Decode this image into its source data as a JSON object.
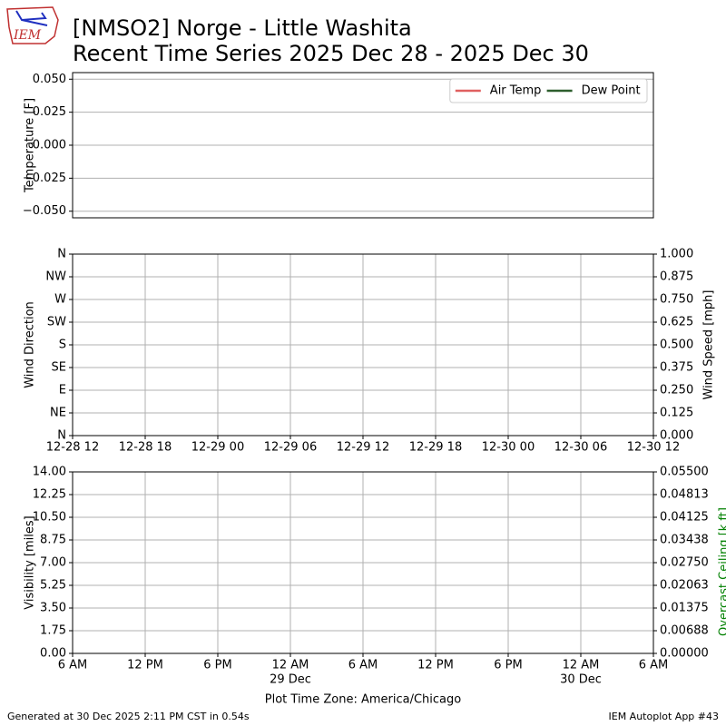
{
  "logo_text": "IEM",
  "title_lines": [
    "[NMSO2] Norge - Little Washita",
    "Recent Time Series 2025 Dec 28 - 2025 Dec 30"
  ],
  "footer_left": "Generated at 30 Dec 2025 2:11 PM CST in 0.54s",
  "footer_right": "IEM Autoplot App #43",
  "chart_data": [
    {
      "type": "line",
      "ylabel": "Temperature [F]",
      "ylim": [
        -0.055,
        0.055
      ],
      "yticks": [
        {
          "value": 0.05,
          "label": "0.050"
        },
        {
          "value": 0.025,
          "label": "0.025"
        },
        {
          "value": 0,
          "label": "0.000"
        },
        {
          "value": -0.025,
          "label": "−0.025"
        },
        {
          "value": -0.05,
          "label": "−0.050"
        }
      ],
      "grid": "y",
      "legend": "upper right",
      "series": [
        {
          "name": "Air Temp",
          "color": "#e06060",
          "values": []
        },
        {
          "name": "Dew Point",
          "color": "#2e5e2e",
          "values": []
        }
      ]
    },
    {
      "type": "line",
      "ylabel": "Wind Direction",
      "ylim": [
        0,
        360
      ],
      "yticks": [
        {
          "value": 0,
          "label": "N"
        },
        {
          "value": 45,
          "label": "NE"
        },
        {
          "value": 90,
          "label": "E"
        },
        {
          "value": 135,
          "label": "SE"
        },
        {
          "value": 180,
          "label": "S"
        },
        {
          "value": 225,
          "label": "SW"
        },
        {
          "value": 270,
          "label": "W"
        },
        {
          "value": 315,
          "label": "NW"
        },
        {
          "value": 360,
          "label": "N"
        }
      ],
      "y2label": "Wind Speed [mph]",
      "y2lim": [
        0,
        1
      ],
      "y2ticks": [
        {
          "value": 0,
          "label": "0.000"
        },
        {
          "value": 0.125,
          "label": "0.125"
        },
        {
          "value": 0.25,
          "label": "0.250"
        },
        {
          "value": 0.375,
          "label": "0.375"
        },
        {
          "value": 0.5,
          "label": "0.500"
        },
        {
          "value": 0.625,
          "label": "0.625"
        },
        {
          "value": 0.75,
          "label": "0.750"
        },
        {
          "value": 0.875,
          "label": "0.875"
        },
        {
          "value": 1,
          "label": "1.000"
        }
      ],
      "xticks": [
        [
          "12-28 12"
        ],
        [
          "12-28 18"
        ],
        [
          "12-29 00"
        ],
        [
          "12-29 06"
        ],
        [
          "12-29 12"
        ],
        [
          "12-29 18"
        ],
        [
          "12-30 00"
        ],
        [
          "12-30 06"
        ],
        [
          "12-30 12"
        ]
      ],
      "grid": "both"
    },
    {
      "type": "line",
      "ylabel": "Visibility [miles]",
      "ylim": [
        0,
        14
      ],
      "yticks": [
        {
          "value": 0,
          "label": "0.00"
        },
        {
          "value": 1.75,
          "label": "1.75"
        },
        {
          "value": 3.5,
          "label": "3.50"
        },
        {
          "value": 5.25,
          "label": "5.25"
        },
        {
          "value": 7,
          "label": "7.00"
        },
        {
          "value": 8.75,
          "label": "8.75"
        },
        {
          "value": 10.5,
          "label": "10.50"
        },
        {
          "value": 12.25,
          "label": "12.25"
        },
        {
          "value": 14,
          "label": "14.00"
        }
      ],
      "y2label": "Overcast Ceiling [k ft]",
      "y2color": "#008000",
      "y2lim": [
        0,
        0.055
      ],
      "y2ticks": [
        {
          "value": 0,
          "label": "0.00000"
        },
        {
          "value": 0.006875,
          "label": "0.00688"
        },
        {
          "value": 0.01375,
          "label": "0.01375"
        },
        {
          "value": 0.020625,
          "label": "0.02063"
        },
        {
          "value": 0.0275,
          "label": "0.02750"
        },
        {
          "value": 0.034375,
          "label": "0.03438"
        },
        {
          "value": 0.04125,
          "label": "0.04125"
        },
        {
          "value": 0.048125,
          "label": "0.04813"
        },
        {
          "value": 0.055,
          "label": "0.05500"
        }
      ],
      "xticks": [
        [
          "6 AM"
        ],
        [
          "12 PM"
        ],
        [
          "6 PM"
        ],
        [
          "12 AM",
          "29 Dec"
        ],
        [
          "6 AM"
        ],
        [
          "12 PM"
        ],
        [
          "6 PM"
        ],
        [
          "12 AM",
          "30 Dec"
        ],
        [
          "6 AM"
        ]
      ],
      "xlabel": "Plot Time Zone: America/Chicago",
      "grid": "both"
    }
  ]
}
